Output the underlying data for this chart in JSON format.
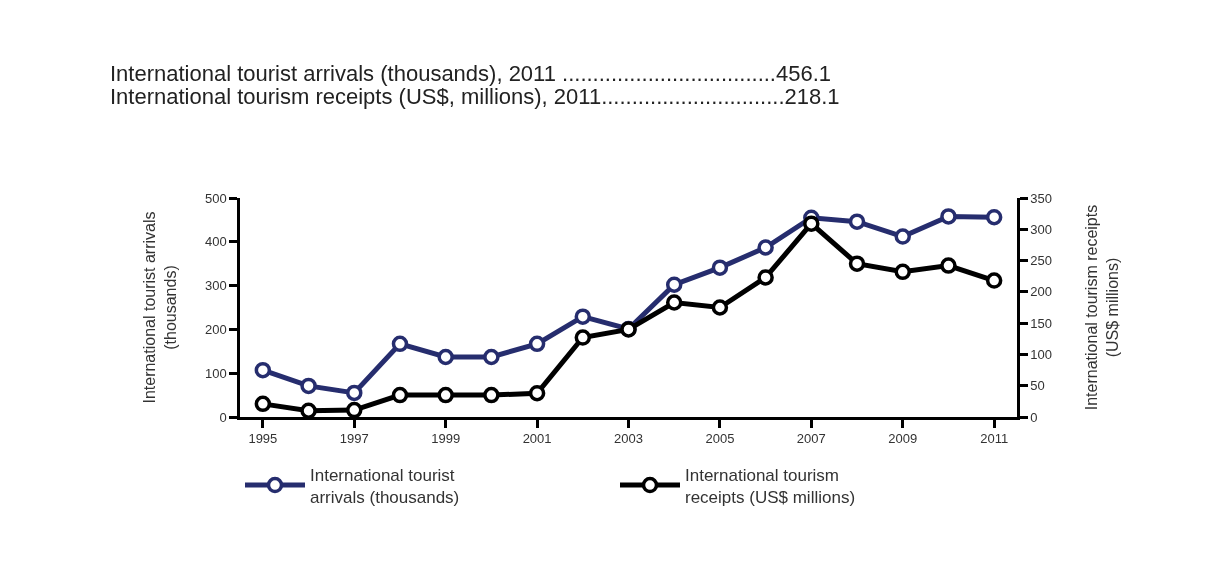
{
  "chart_data": {
    "type": "line",
    "annotations": [
      "International tourist arrivals (thousands), 2011 ...................................456.1",
      "International tourism receipts (US$, millions), 2011..............................218.1"
    ],
    "x": [
      1995,
      1996,
      1997,
      1998,
      1999,
      2000,
      2001,
      2002,
      2003,
      2004,
      2005,
      2006,
      2007,
      2008,
      2009,
      2010,
      2011
    ],
    "series": [
      {
        "name": "International tourist\narrivals (thousands)",
        "color": "#262d6e",
        "values": [
          107,
          71,
          55,
          167,
          137,
          137,
          167,
          229,
          201,
          302,
          341,
          387,
          455,
          446,
          412,
          458,
          456.1
        ]
      },
      {
        "name": "International tourism\nreceipts (US$ millions)",
        "color": "#000000",
        "axis": "y2",
        "values": [
          21,
          10,
          11,
          35,
          35,
          35,
          38,
          127,
          140,
          183,
          175,
          223,
          309,
          245,
          232,
          242,
          218.1
        ]
      }
    ],
    "ylabel": "International tourist arrivals\n(thousands)",
    "y2label": "International tourism receipts\n(US$ millions)",
    "xlim": [
      1994.5,
      2011.5
    ],
    "xticks": [
      1995,
      1997,
      1999,
      2001,
      2003,
      2005,
      2007,
      2009,
      2011
    ],
    "ylim": [
      0,
      500
    ],
    "yticks": [
      0,
      100,
      200,
      300,
      400,
      500
    ],
    "y2lim": [
      0,
      350
    ],
    "y2ticks": [
      0,
      50,
      100,
      150,
      200,
      250,
      300,
      350
    ],
    "marker": "circle",
    "line_style": "solid",
    "legend": "bottom"
  }
}
